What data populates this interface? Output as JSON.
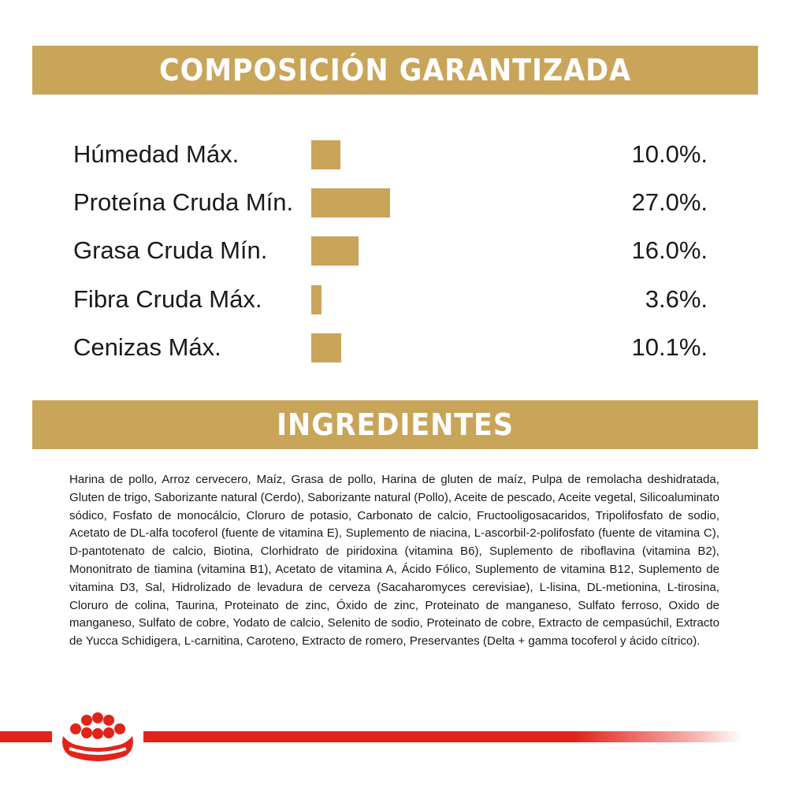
{
  "composition": {
    "title": "COMPOSICIÓN GARANTIZADA",
    "accent_color": "#c9a55a",
    "rows": [
      {
        "label": "Húmedad Máx.",
        "value_text": "10.0%.",
        "percent": 10.0
      },
      {
        "label": "Proteína Cruda Mín.",
        "value_text": "27.0%.",
        "percent": 27.0
      },
      {
        "label": "Grasa Cruda Mín.",
        "value_text": "16.0%.",
        "percent": 16.0
      },
      {
        "label": "Fibra Cruda Máx.",
        "value_text": "3.6%.",
        "percent": 3.6
      },
      {
        "label": "Cenizas Máx.",
        "value_text": "10.1%.",
        "percent": 10.1
      }
    ]
  },
  "ingredients": {
    "title": "INGREDIENTES",
    "text": "Harina de pollo, Arroz cervecero, Maíz, Grasa de pollo, Harina de gluten de maíz, Pulpa de remolacha deshidratada, Gluten de trigo, Saborizante natural (Cerdo), Saborizante natural (Pollo), Aceite de pescado, Aceite vegetal, Silicoaluminato sódico, Fosfato de monocálcio, Cloruro de potasio, Carbonato de calcio, Fructooligosacaridos, Tripolifosfato de sodio, Acetato de DL-alfa tocoferol (fuente de vitamina E), Suplemento de niacina, L-ascorbil-2-polifosfato (fuente de vitamina C), D-pantotenato de calcio, Biotina, Clorhidrato de piridoxina (vitamina B6), Suplemento de riboflavina (vitamina B2), Mononitrato de tiamina (vitamina B1), Acetato de vitamina A, Ácido Fólico, Suplemento de vitamina B12, Suplemento de vitamina D3, Sal, Hidrolizado de levadura de cerveza (Sacaharomyces cerevisiae), L-lisina, DL-metionina, L-tirosina, Cloruro de colina, Taurina, Proteinato de zinc, Óxido de zinc, Proteinato de manganeso, Sulfato ferroso, Oxido de manganeso, Sulfato de cobre, Yodato de calcio, Selenito de sodio, Proteinato de cobre, Extracto de cempasúchil, Extracto de Yucca Schidigera, L-carnitina, Caroteno, Extracto de romero, Preservantes (Delta + gamma tocoferol y ácido cítrico)."
  },
  "footer": {
    "logo_icon": "royal-canin-crown-icon",
    "brand_color": "#e2231a"
  }
}
